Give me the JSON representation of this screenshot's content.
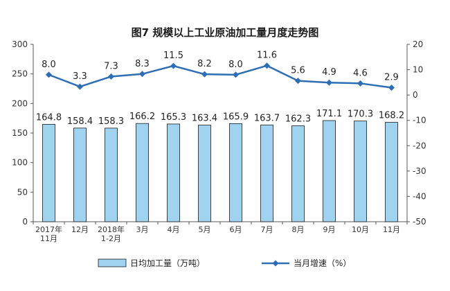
{
  "chart_data": {
    "type": "bar+line",
    "title": "图7  规模以上工业原油加工量月度走势图",
    "categories": [
      "2017年\n11月",
      "12月",
      "2018年\n1-2月",
      "3月",
      "4月",
      "5月",
      "6月",
      "7月",
      "8月",
      "9月",
      "10月",
      "11月"
    ],
    "series": [
      {
        "name": "日均加工量（万吨）",
        "type": "bar",
        "axis": "left",
        "values": [
          164.8,
          158.4,
          158.3,
          166.2,
          165.3,
          163.4,
          165.9,
          163.7,
          162.3,
          171.1,
          170.3,
          168.2
        ]
      },
      {
        "name": "当月增速（%）",
        "type": "line",
        "axis": "right",
        "values": [
          8.0,
          3.3,
          7.3,
          8.3,
          11.5,
          8.2,
          8.0,
          11.6,
          5.6,
          4.9,
          4.6,
          2.9
        ]
      }
    ],
    "left_axis": {
      "ylim": [
        0,
        300
      ],
      "ticks": [
        0,
        50,
        100,
        150,
        200,
        250,
        300
      ]
    },
    "right_axis": {
      "ylim": [
        -50,
        20
      ],
      "ticks": [
        -50,
        -40,
        -30,
        -20,
        -10,
        0,
        10,
        20
      ]
    },
    "legend_placement": "bottom",
    "grid": false,
    "colors": {
      "bar_fill": "#9fd3f0",
      "bar_stroke": "#1a1a1a",
      "line": "#2d6eb5",
      "axis": "#555555"
    }
  }
}
